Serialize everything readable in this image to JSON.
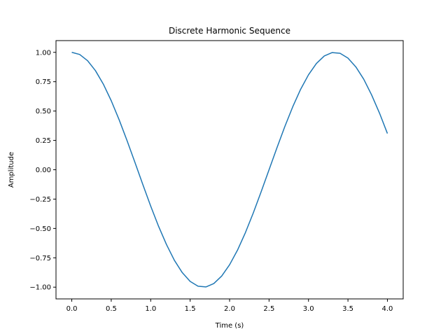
{
  "chart_data": {
    "type": "line",
    "title": "Discrete Harmonic Sequence",
    "xlabel": "Time (s)",
    "ylabel": "Amplitude",
    "xlim": [
      -0.2,
      4.2
    ],
    "ylim": [
      -1.1,
      1.1
    ],
    "x_ticks": [
      0.0,
      0.5,
      1.0,
      1.5,
      2.0,
      2.5,
      3.0,
      3.5,
      4.0
    ],
    "x_tick_labels": [
      "0.0",
      "0.5",
      "1.0",
      "1.5",
      "2.0",
      "2.5",
      "3.0",
      "3.5",
      "4.0"
    ],
    "y_ticks": [
      -1.0,
      -0.75,
      -0.5,
      -0.25,
      0.0,
      0.25,
      0.5,
      0.75,
      1.0
    ],
    "y_tick_labels": [
      "−1.00",
      "−0.75",
      "−0.50",
      "−0.25",
      "0.00",
      "0.25",
      "0.50",
      "0.75",
      "1.00"
    ],
    "grid": false,
    "series": [
      {
        "color": "#1f77b4",
        "x": [
          0.0,
          0.1,
          0.2,
          0.3,
          0.4,
          0.5,
          0.6,
          0.7,
          0.8,
          0.9,
          1.0,
          1.1,
          1.2,
          1.3,
          1.4,
          1.5,
          1.6,
          1.7,
          1.8,
          1.9,
          2.0,
          2.1,
          2.2,
          2.3,
          2.4,
          2.5,
          2.6,
          2.7,
          2.8,
          2.9,
          3.0,
          3.1,
          3.2,
          3.3,
          3.4,
          3.5,
          3.6,
          3.7,
          3.8,
          3.9,
          4.0
        ],
        "y": [
          1.0,
          0.982,
          0.929,
          0.844,
          0.729,
          0.588,
          0.426,
          0.249,
          0.063,
          -0.125,
          -0.309,
          -0.482,
          -0.637,
          -0.771,
          -0.876,
          -0.951,
          -0.992,
          -0.998,
          -0.969,
          -0.905,
          -0.809,
          -0.685,
          -0.536,
          -0.368,
          -0.187,
          0.0,
          0.187,
          0.368,
          0.536,
          0.685,
          0.809,
          0.905,
          0.969,
          0.998,
          0.992,
          0.951,
          0.876,
          0.771,
          0.637,
          0.482,
          0.309
        ]
      }
    ]
  }
}
